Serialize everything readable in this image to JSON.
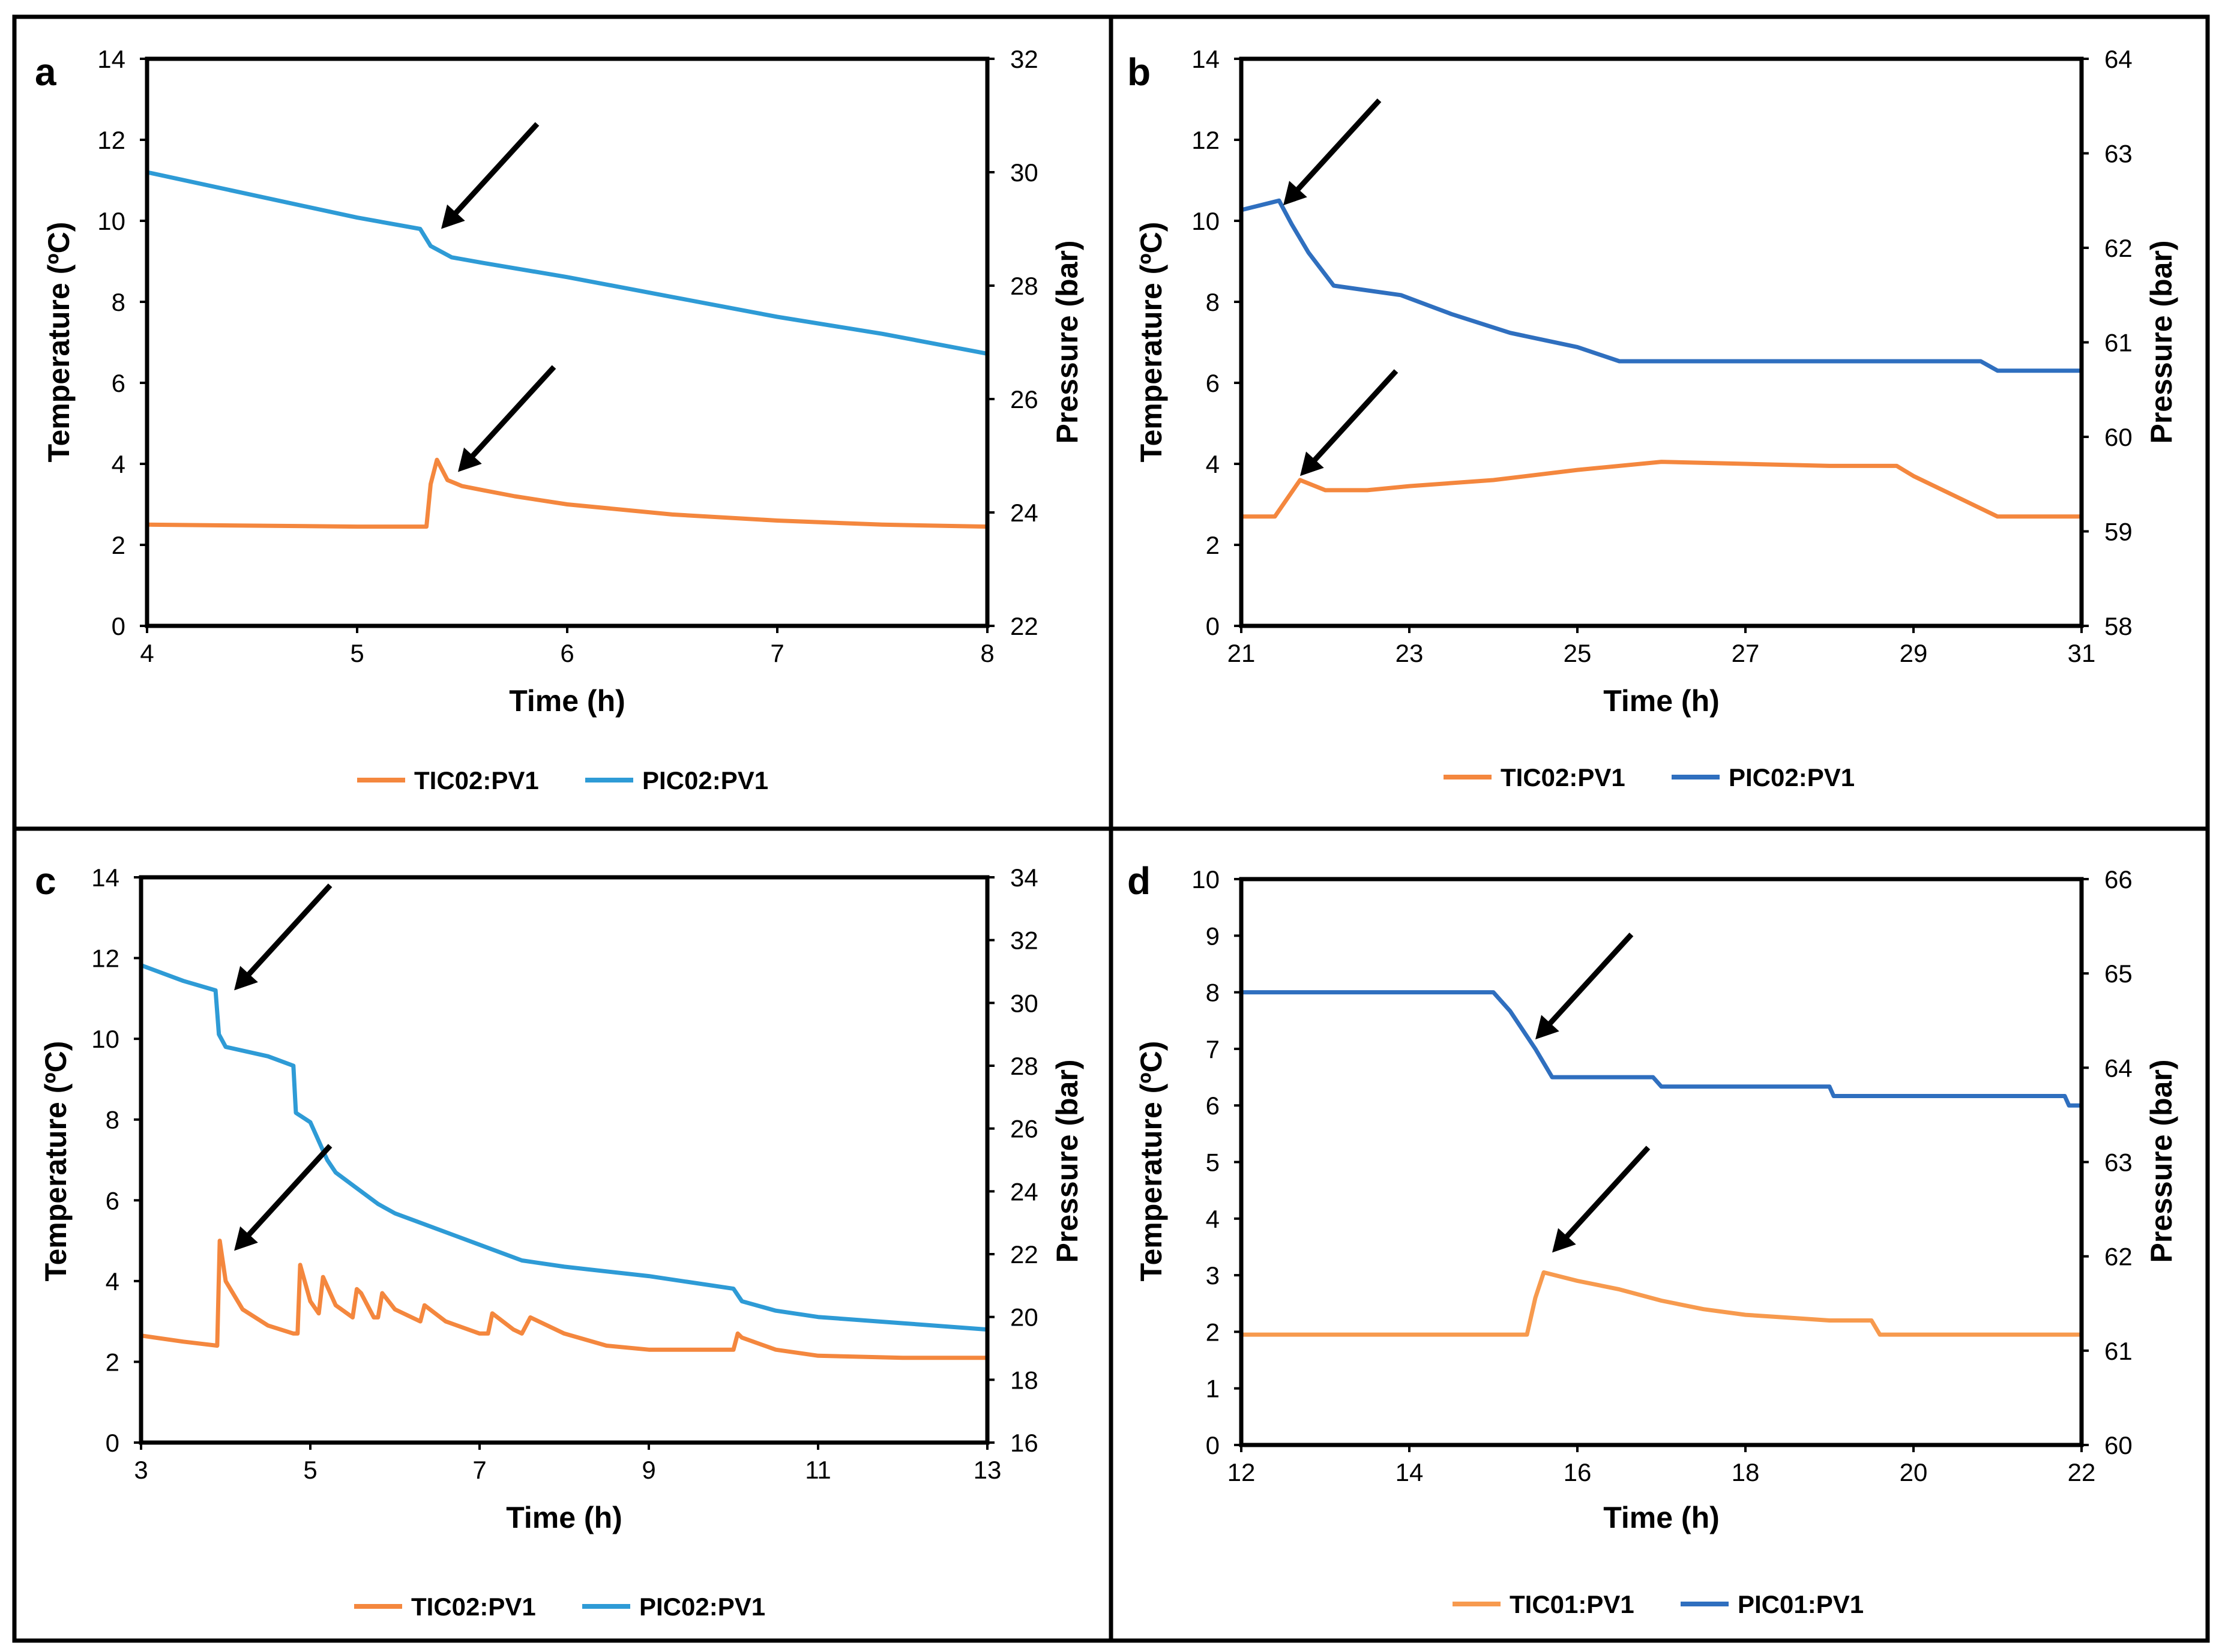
{
  "colors": {
    "temp_orange": "#F4873E",
    "temp_orange_light": "#F79A4E",
    "pressure_cyan": "#2E9BD6",
    "pressure_blue": "#2F6FBF",
    "frame": "#000000",
    "arrow": "#000000"
  },
  "chart_data": [
    {
      "panel_label": "a",
      "type": "line",
      "xlabel": "Time (h)",
      "ylabel": "Temperature (ºC)",
      "y2label": "Pressure (bar)",
      "xlim": [
        4,
        8
      ],
      "ylim": [
        0,
        14
      ],
      "y2lim": [
        22,
        32
      ],
      "xticks": [
        "4",
        "5",
        "6",
        "7",
        "8"
      ],
      "yticks": [
        "0",
        "2",
        "4",
        "6",
        "8",
        "10",
        "12",
        "14"
      ],
      "y2ticks": [
        "22",
        "24",
        "26",
        "28",
        "30",
        "32"
      ],
      "series": [
        {
          "name": "TIC02:PV1",
          "axis": "left",
          "color": "#F4873E",
          "x": [
            4.0,
            5.0,
            5.33,
            5.35,
            5.38,
            5.43,
            5.5,
            5.6,
            5.75,
            6.0,
            6.5,
            7.0,
            7.5,
            8.0
          ],
          "y": [
            2.5,
            2.45,
            2.45,
            3.5,
            4.1,
            3.6,
            3.45,
            3.35,
            3.2,
            3.0,
            2.75,
            2.6,
            2.5,
            2.45
          ]
        },
        {
          "name": "PIC02:PV1",
          "axis": "right",
          "color": "#2E9BD6",
          "x": [
            4.0,
            4.5,
            5.0,
            5.3,
            5.35,
            5.45,
            5.6,
            6.0,
            6.5,
            7.0,
            7.5,
            8.0
          ],
          "y": [
            30.0,
            29.6,
            29.2,
            29.0,
            28.7,
            28.5,
            28.4,
            28.15,
            27.8,
            27.45,
            27.15,
            26.8
          ]
        }
      ],
      "arrows": [
        {
          "to_x": 5.4,
          "to_y2": 29.0,
          "axis": "right"
        },
        {
          "to_x": 5.48,
          "to_y": 3.8,
          "axis": "left"
        }
      ],
      "legend": [
        "TIC02:PV1",
        "PIC02:PV1"
      ]
    },
    {
      "panel_label": "b",
      "type": "line",
      "xlabel": "Time (h)",
      "ylabel": "Temperature (ºC)",
      "y2label": "Pressure (bar)",
      "xlim": [
        21,
        31
      ],
      "ylim": [
        0,
        14
      ],
      "y2lim": [
        58,
        64
      ],
      "xticks": [
        "21",
        "23",
        "25",
        "27",
        "29",
        "31"
      ],
      "yticks": [
        "0",
        "2",
        "4",
        "6",
        "8",
        "10",
        "12",
        "14"
      ],
      "y2ticks": [
        "58",
        "59",
        "60",
        "61",
        "62",
        "63",
        "64"
      ],
      "series": [
        {
          "name": "TIC02:PV1",
          "axis": "left",
          "color": "#F4873E",
          "x": [
            21.0,
            21.4,
            21.7,
            22.0,
            22.5,
            23.0,
            24.0,
            25.0,
            26.0,
            27.0,
            28.0,
            28.8,
            29.0,
            29.5,
            30.0,
            31.0
          ],
          "y": [
            2.7,
            2.7,
            3.6,
            3.35,
            3.35,
            3.45,
            3.6,
            3.85,
            4.05,
            4.0,
            3.95,
            3.95,
            3.7,
            3.2,
            2.7,
            2.7
          ]
        },
        {
          "name": "PIC02:PV1",
          "axis": "right",
          "color": "#2F6FBF",
          "x": [
            21.0,
            21.45,
            21.6,
            21.8,
            22.1,
            22.9,
            23.5,
            24.2,
            25.0,
            25.5,
            26.0,
            27.0,
            28.0,
            29.0,
            29.8,
            30.0,
            31.0
          ],
          "y": [
            62.4,
            62.5,
            62.25,
            61.95,
            61.6,
            61.5,
            61.3,
            61.1,
            60.95,
            60.8,
            60.8,
            60.8,
            60.8,
            60.8,
            60.8,
            60.7,
            60.7
          ]
        }
      ],
      "arrows": [
        {
          "to_x": 21.5,
          "to_y2": 62.45,
          "axis": "right"
        },
        {
          "to_x": 21.7,
          "to_y": 3.7,
          "axis": "left"
        }
      ],
      "legend": [
        "TIC02:PV1",
        "PIC02:PV1"
      ]
    },
    {
      "panel_label": "c",
      "type": "line",
      "xlabel": "Time (h)",
      "ylabel": "Temperature (ºC)",
      "y2label": "Pressure (bar)",
      "xlim": [
        3,
        13
      ],
      "ylim": [
        0,
        14
      ],
      "y2lim": [
        16,
        34
      ],
      "xticks": [
        "3",
        "5",
        "7",
        "9",
        "11",
        "13"
      ],
      "yticks": [
        "0",
        "2",
        "4",
        "6",
        "8",
        "10",
        "12",
        "14"
      ],
      "y2ticks": [
        "16",
        "18",
        "20",
        "22",
        "24",
        "26",
        "28",
        "30",
        "32",
        "34"
      ],
      "series": [
        {
          "name": "TIC02:PV1",
          "axis": "left",
          "color": "#F4873E",
          "x": [
            3.0,
            3.5,
            3.9,
            3.93,
            4.0,
            4.2,
            4.5,
            4.8,
            4.85,
            4.88,
            5.0,
            5.1,
            5.15,
            5.3,
            5.5,
            5.55,
            5.6,
            5.75,
            5.8,
            5.85,
            6.0,
            6.3,
            6.35,
            6.6,
            7.0,
            7.1,
            7.15,
            7.4,
            7.5,
            7.6,
            8.0,
            8.5,
            9.0,
            9.5,
            10.0,
            10.05,
            10.1,
            10.5,
            11.0,
            12.0,
            13.0
          ],
          "y": [
            2.65,
            2.5,
            2.4,
            5.0,
            4.0,
            3.3,
            2.9,
            2.7,
            2.7,
            4.4,
            3.5,
            3.2,
            4.1,
            3.4,
            3.1,
            3.8,
            3.7,
            3.1,
            3.1,
            3.7,
            3.3,
            3.0,
            3.4,
            3.0,
            2.7,
            2.7,
            3.2,
            2.8,
            2.7,
            3.1,
            2.7,
            2.4,
            2.3,
            2.3,
            2.3,
            2.7,
            2.6,
            2.3,
            2.15,
            2.1,
            2.1
          ]
        },
        {
          "name": "PIC02:PV1",
          "axis": "right",
          "color": "#2E9BD6",
          "x": [
            3.0,
            3.5,
            3.88,
            3.92,
            4.0,
            4.5,
            4.8,
            4.83,
            5.0,
            5.2,
            5.3,
            5.5,
            5.8,
            6.0,
            6.5,
            7.0,
            7.5,
            8.0,
            9.0,
            10.0,
            10.1,
            10.5,
            11.0,
            12.0,
            13.0
          ],
          "y": [
            31.2,
            30.7,
            30.4,
            29.0,
            28.6,
            28.3,
            28.0,
            26.5,
            26.2,
            25.0,
            24.6,
            24.2,
            23.6,
            23.3,
            22.8,
            22.3,
            21.8,
            21.6,
            21.3,
            20.9,
            20.5,
            20.2,
            20.0,
            19.8,
            19.6
          ]
        }
      ],
      "arrows": [
        {
          "to_x": 4.1,
          "to_y2": 30.4,
          "axis": "right"
        },
        {
          "to_x": 4.1,
          "to_y": 4.75,
          "axis": "left"
        }
      ],
      "legend": [
        "TIC02:PV1",
        "PIC02:PV1"
      ]
    },
    {
      "panel_label": "d",
      "type": "line",
      "xlabel": "Time (h)",
      "ylabel": "Temperature (ºC)",
      "y2label": "Pressure (bar)",
      "xlim": [
        12,
        22
      ],
      "ylim": [
        0,
        10
      ],
      "y2lim": [
        60,
        66
      ],
      "xticks": [
        "12",
        "14",
        "16",
        "18",
        "20",
        "22"
      ],
      "yticks": [
        "0",
        "1",
        "2",
        "3",
        "4",
        "5",
        "6",
        "7",
        "8",
        "9",
        "10"
      ],
      "y2ticks": [
        "60",
        "61",
        "62",
        "63",
        "64",
        "65",
        "66"
      ],
      "series": [
        {
          "name": "TIC01:PV1",
          "axis": "left",
          "color": "#F79A4E",
          "x": [
            12.0,
            13.0,
            14.0,
            15.4,
            15.5,
            15.6,
            16.0,
            16.5,
            17.0,
            17.5,
            18.0,
            18.5,
            19.0,
            19.5,
            19.6,
            20.0,
            21.0,
            22.0
          ],
          "y": [
            1.95,
            1.95,
            1.95,
            1.95,
            2.6,
            3.05,
            2.9,
            2.75,
            2.55,
            2.4,
            2.3,
            2.25,
            2.2,
            2.2,
            1.95,
            1.95,
            1.95,
            1.95
          ]
        },
        {
          "name": "PIC01:PV1",
          "axis": "right",
          "color": "#2F6FBF",
          "x": [
            12.0,
            13.0,
            14.0,
            15.0,
            15.2,
            15.5,
            15.7,
            16.0,
            16.9,
            17.0,
            18.0,
            19.0,
            19.05,
            20.0,
            21.0,
            21.8,
            21.85,
            22.0
          ],
          "y": [
            64.8,
            64.8,
            64.8,
            64.8,
            64.6,
            64.2,
            63.9,
            63.9,
            63.9,
            63.8,
            63.8,
            63.8,
            63.7,
            63.7,
            63.7,
            63.7,
            63.6,
            63.6
          ]
        }
      ],
      "arrows": [
        {
          "to_x": 15.5,
          "to_y2": 64.3,
          "axis": "right"
        },
        {
          "to_x": 15.7,
          "to_y": 3.4,
          "axis": "left"
        }
      ],
      "legend": [
        "TIC01:PV1",
        "PIC01:PV1"
      ]
    }
  ]
}
